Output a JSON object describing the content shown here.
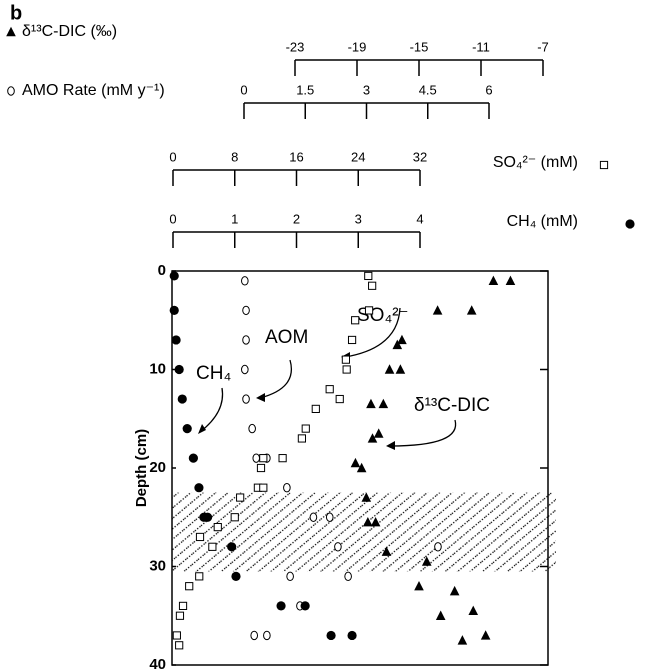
{
  "chart_data": {
    "type": "scatter",
    "panel_label": "b",
    "ylabel": "Depth (cm)",
    "ylim": [
      0,
      40
    ],
    "yticks": [
      0,
      10,
      20,
      30,
      40
    ],
    "y_inverted": true,
    "zone": [
      22.5,
      30.5
    ],
    "annotations": [
      {
        "text": "CH₄"
      },
      {
        "text": "AOM"
      },
      {
        "text": "SO₄²⁻"
      },
      {
        "text": "δ¹³C-DIC"
      }
    ],
    "series": [
      {
        "name": "δ¹³C-DIC (‰)",
        "marker": "triangle",
        "color": "#000000",
        "xlim": [
          -23,
          -7
        ],
        "xticks": [
          -23,
          -19,
          -15,
          -11,
          -7
        ],
        "x": [
          -10.2,
          -9.1,
          -13.8,
          -11.6,
          -16.4,
          -16.1,
          -16.9,
          -16.2,
          -18.1,
          -17.3,
          -17.6,
          -18.0,
          -19.1,
          -18.7,
          -18.4,
          -18.3,
          -17.8,
          -17.1,
          -14.5,
          -15.0,
          -12.7,
          -13.6,
          -11.5,
          -12.2,
          -10.7
        ],
        "y": [
          1,
          1,
          4,
          4,
          7.5,
          7,
          10,
          10,
          13.5,
          13.5,
          16.5,
          17,
          19.5,
          20,
          23,
          25.5,
          25.5,
          28.5,
          29.5,
          32,
          32.5,
          35,
          34.5,
          37.5,
          37
        ]
      },
      {
        "name": "AMO Rate (mM y⁻¹)",
        "marker": "circle-open",
        "color": "#000000",
        "xlim": [
          0,
          6
        ],
        "xticks": [
          0,
          1.5,
          3,
          4.5,
          6
        ],
        "x": [
          0.02,
          0.05,
          0.05,
          0.02,
          0.05,
          0.2,
          0.3,
          0.56,
          1.05,
          1.7,
          2.1,
          2.3,
          4.75,
          1.13,
          2.55,
          1.37,
          0.25,
          0.56
        ],
        "y": [
          1,
          4,
          7,
          10,
          13,
          16,
          19,
          19,
          22,
          25,
          25,
          28,
          28,
          31,
          31,
          34,
          37,
          37
        ]
      },
      {
        "name": "SO₄²⁻ (mM)",
        "marker": "square-open",
        "color": "#000000",
        "xlim": [
          0,
          32
        ],
        "xticks": [
          0,
          8,
          16,
          24,
          32
        ],
        "x": [
          25.3,
          25.8,
          25.4,
          23.6,
          23.2,
          22.4,
          22.5,
          20.3,
          21.6,
          18.5,
          17.2,
          16.7,
          14.2,
          11.7,
          11.4,
          11.0,
          11.7,
          8.7,
          8.0,
          5.8,
          3.5,
          5.1,
          3.4,
          2.1,
          1.3,
          0.9,
          0.5,
          0.8
        ],
        "y": [
          0.5,
          1.5,
          4,
          5,
          7,
          9,
          10,
          12,
          13,
          14,
          16,
          17,
          19,
          19,
          20,
          22,
          22,
          23,
          25,
          26,
          27,
          28,
          31,
          32,
          34,
          35,
          37,
          38
        ]
      },
      {
        "name": "CH₄ (mM)",
        "marker": "circle-filled",
        "color": "#000000",
        "xlim": [
          0,
          4
        ],
        "xticks": [
          0,
          1,
          2,
          3,
          4
        ],
        "x": [
          0.02,
          0.02,
          0.05,
          0.1,
          0.15,
          0.23,
          0.33,
          0.42,
          0.5,
          0.56,
          0.95,
          1.02,
          1.75,
          2.14,
          2.56,
          2.9
        ],
        "y": [
          0.5,
          4,
          7,
          10,
          13,
          16,
          19,
          22,
          25,
          25,
          28,
          31,
          34,
          34,
          37,
          37
        ]
      }
    ]
  }
}
